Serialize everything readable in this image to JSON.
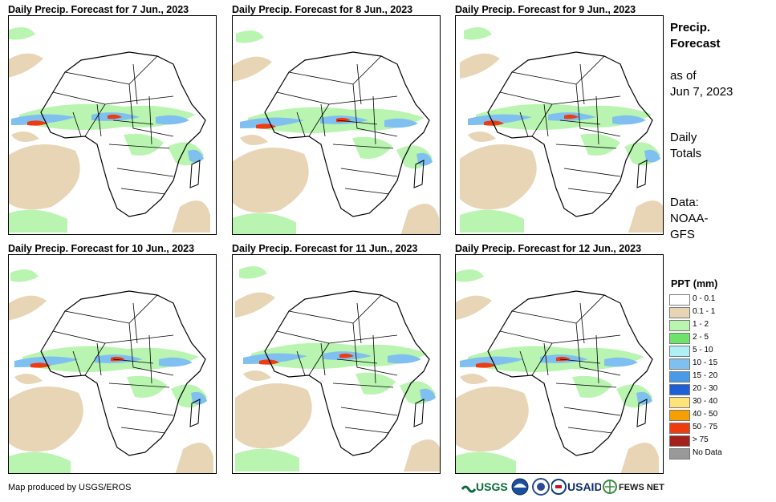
{
  "panels": [
    {
      "title": "Daily Precip. Forecast for 7 Jun., 2023"
    },
    {
      "title": "Daily Precip. Forecast for 8 Jun., 2023"
    },
    {
      "title": "Daily Precip. Forecast for 9 Jun., 2023"
    },
    {
      "title": "Daily Precip. Forecast for 10 Jun., 2023"
    },
    {
      "title": "Daily Precip. Forecast for 11 Jun., 2023"
    },
    {
      "title": "Daily Precip. Forecast for 12 Jun., 2023"
    }
  ],
  "sidebar": {
    "title_line1": "Precip.",
    "title_line2": "Forecast",
    "asof_line1": "as of",
    "asof_line2": "Jun 7, 2023",
    "totals_line1": "Daily",
    "totals_line2": "Totals",
    "data_line1": "Data:",
    "data_line2": "NOAA-",
    "data_line3": "GFS"
  },
  "legend": {
    "title": "PPT (mm)",
    "items": [
      {
        "label": "0 - 0.1",
        "color": "#ffffff"
      },
      {
        "label": "0.1 - 1",
        "color": "#e8d5b5"
      },
      {
        "label": "1 - 2",
        "color": "#b9f5b0"
      },
      {
        "label": "2 - 5",
        "color": "#6ee36a"
      },
      {
        "label": "5 - 10",
        "color": "#b0eef5"
      },
      {
        "label": "10 - 15",
        "color": "#7fc0f0"
      },
      {
        "label": "15 - 20",
        "color": "#4a9ae8"
      },
      {
        "label": "20 - 30",
        "color": "#1f5fd6"
      },
      {
        "label": "30 - 40",
        "color": "#fde47a"
      },
      {
        "label": "40 - 50",
        "color": "#f5a000"
      },
      {
        "label": "50 - 75",
        "color": "#ee3b10"
      },
      {
        "label": "> 75",
        "color": "#a3201d"
      },
      {
        "label": "No Data",
        "color": "#999999"
      }
    ]
  },
  "footer": {
    "credit": "Map produced by USGS/EROS",
    "logo_usgs": "USGS",
    "logo_usaid": "USAID",
    "logo_fews": "FEWS NET"
  }
}
